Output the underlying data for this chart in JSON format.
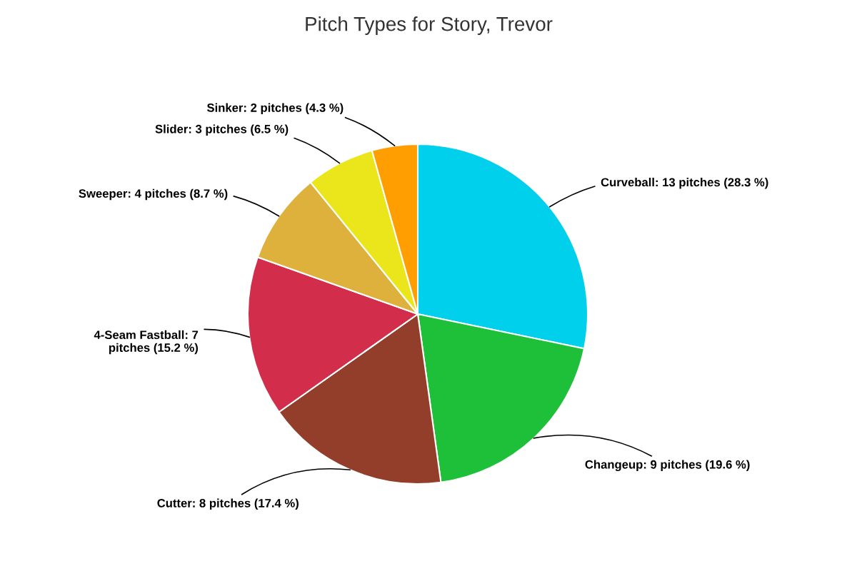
{
  "chart_data": {
    "type": "pie",
    "title": "Pitch Types for Story, Trevor",
    "categories": [
      "Curveball",
      "Changeup",
      "Cutter",
      "4-Seam Fastball",
      "Sweeper",
      "Slider",
      "Sinker"
    ],
    "values": [
      13,
      9,
      8,
      7,
      4,
      3,
      2
    ],
    "value_labels": [
      "13 pitches (28.3 %)",
      "9 pitches (19.6 %)",
      "8 pitches (17.4 %)",
      "7\npitches (15.2 %)",
      "4 pitches (8.7 %)",
      "3 pitches (6.5 %)",
      "2 pitches (4.3 %)"
    ],
    "colors": [
      "#00d0ec",
      "#1ec03a",
      "#923e2b",
      "#d22d4a",
      "#ddb13b",
      "#ebe51b",
      "#ff9e00"
    ],
    "legend": false
  }
}
